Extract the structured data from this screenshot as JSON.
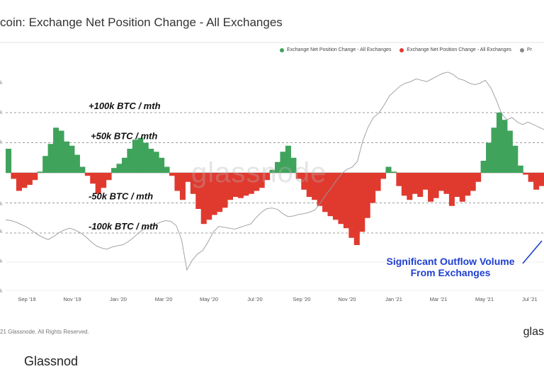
{
  "title": "coin: Exchange Net Position Change - All Exchanges",
  "legend": [
    {
      "label": "Exchange Net Position Change - All Exchanges",
      "color": "#3fa35b"
    },
    {
      "label": "Exchange Net Position Change - All Exchanges",
      "color": "#e03a2f"
    },
    {
      "label": "Pr",
      "color": "#888888"
    }
  ],
  "footer": "21 Glassnode. All Rights Reserved.",
  "logo": "glas",
  "watermark": "glassnode",
  "bottom_word": "Glassnod",
  "y_tick_labels": [
    "k",
    "k",
    "k",
    "k",
    "k",
    "k",
    "k"
  ],
  "colors": {
    "positive": "#3fa35b",
    "negative": "#e03a2f",
    "price": "#9a9a9a",
    "annotation": "#1f3fd0"
  },
  "chart_data": {
    "type": "bar",
    "x_ticks": [
      "Sep '19",
      "Nov '19",
      "Jan '20",
      "Mar '20",
      "May '20",
      "Jul '20",
      "Sep '20",
      "Nov '20",
      "Jan '21",
      "Mar '21",
      "May '21",
      "Jul '21"
    ],
    "reference_lines": [
      {
        "value": 100000,
        "label": "+100k BTC / mth"
      },
      {
        "value": 50000,
        "label": "+50k BTC / mth"
      },
      {
        "value": -50000,
        "label": "-50k BTC / mth"
      },
      {
        "value": -100000,
        "label": "-100k BTC / mth"
      }
    ],
    "annotation": {
      "lines": [
        "Significant Outflow Volume",
        "From Exchanges"
      ]
    },
    "series": [
      {
        "name": "Exchange Net Position Change - All Exchanges",
        "values": [
          40000,
          -10000,
          -30000,
          -25000,
          -20000,
          -12000,
          2000,
          28000,
          48000,
          75000,
          70000,
          52000,
          45000,
          30000,
          10000,
          -5000,
          -18000,
          -35000,
          -25000,
          -12000,
          8000,
          15000,
          25000,
          40000,
          55000,
          58000,
          50000,
          40000,
          35000,
          25000,
          10000,
          -5000,
          -30000,
          -45000,
          -15000,
          -35000,
          -60000,
          -85000,
          -78000,
          -70000,
          -65000,
          -58000,
          -45000,
          -40000,
          -42000,
          -38000,
          -35000,
          -30000,
          -25000,
          -12000,
          5000,
          18000,
          35000,
          45000,
          25000,
          -10000,
          -28000,
          -40000,
          -45000,
          -55000,
          -65000,
          -72000,
          -78000,
          -85000,
          -92000,
          -108000,
          -120000,
          -98000,
          -75000,
          -50000,
          -30000,
          -10000,
          10000,
          2000,
          -22000,
          -38000,
          -45000,
          -35000,
          -40000,
          -28000,
          -48000,
          -42000,
          -30000,
          -35000,
          -55000,
          -40000,
          -48000,
          -38000,
          -30000,
          -15000,
          20000,
          50000,
          75000,
          100000,
          88000,
          70000,
          45000,
          12000,
          -3000,
          -15000,
          -28000,
          -22000
        ]
      },
      {
        "name": "Pr",
        "values": [
          10200,
          10100,
          9900,
          9600,
          9300,
          8900,
          8500,
          8200,
          8000,
          8300,
          8700,
          9000,
          9200,
          9000,
          8700,
          8300,
          7800,
          7400,
          7200,
          7100,
          7300,
          7400,
          7500,
          7800,
          8200,
          8700,
          9100,
          9400,
          9600,
          9900,
          10100,
          10000,
          9500,
          8000,
          5500,
          6200,
          6700,
          7000,
          7800,
          8800,
          9400,
          9300,
          9200,
          9100,
          9300,
          9500,
          9700,
          10500,
          11200,
          11700,
          11800,
          11600,
          11000,
          10600,
          10700,
          10900,
          11000,
          11200,
          11500,
          12500,
          13800,
          15000,
          16500,
          18000,
          19000,
          19500,
          21000,
          27000,
          32000,
          36000,
          38000,
          42000,
          47000,
          50000,
          53000,
          55000,
          56000,
          58000,
          57000,
          56000,
          58000,
          60000,
          62000,
          63000,
          61000,
          58000,
          57000,
          55000,
          54000,
          55000,
          57000,
          52000,
          45000,
          38000,
          35000,
          36000,
          34000,
          33000,
          34000,
          33000,
          32000,
          31000
        ]
      }
    ]
  }
}
